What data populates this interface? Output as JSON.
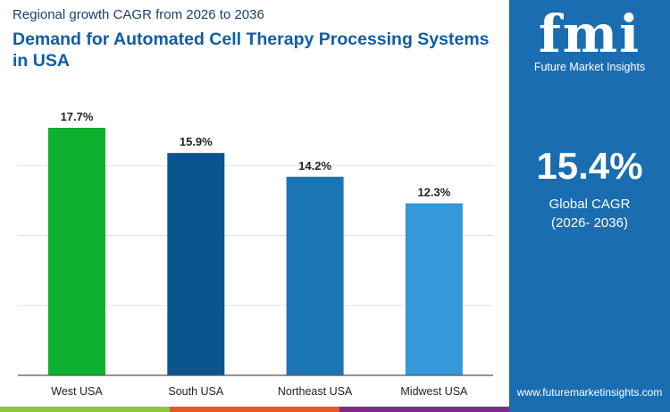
{
  "subtitle": "Regional growth CAGR from 2026 to 2036",
  "title": "Demand for Automated Cell Therapy Processing Systems in USA",
  "brand": {
    "logo_text": "fmi",
    "name": "Future Market Insights",
    "url": "www.futuremarketinsights.com",
    "panel_color": "#1a6db0"
  },
  "global": {
    "value": "15.4%",
    "label": "Global CAGR",
    "period": "(2026- 2036)"
  },
  "stripe_colors": [
    "#8cc63f",
    "#e8572a",
    "#7b2d8b"
  ],
  "chart_data": {
    "type": "bar",
    "categories": [
      "West USA",
      "South USA",
      "Northeast USA",
      "Midwest USA"
    ],
    "values": [
      17.7,
      15.9,
      14.2,
      12.3
    ],
    "labels": [
      "17.7%",
      "15.9%",
      "14.2%",
      "12.3%"
    ],
    "colors": [
      "#0fb02e",
      "#0a5590",
      "#1b75b5",
      "#3498da"
    ],
    "ylim": [
      0,
      20
    ],
    "grid": true,
    "gridlines": [
      5,
      10,
      15
    ]
  }
}
